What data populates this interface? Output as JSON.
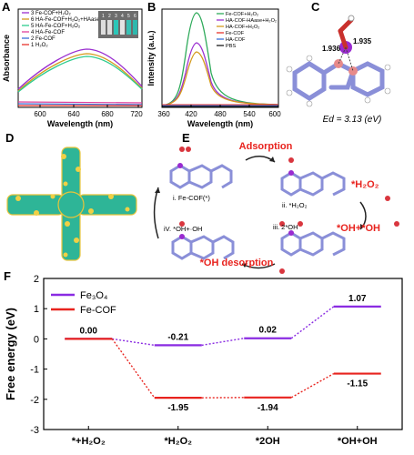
{
  "panels": {
    "A": {
      "label": "A",
      "ylabel": "Absorbance",
      "xlabel": "Wavelength (nm)",
      "xticks": [
        "600",
        "640",
        "680",
        "720"
      ],
      "legend": [
        "3 Fe-COF+H₂O₂",
        "6 HA-Fe-COF+H₂O₂+HAase",
        "5 HA-Fe-COF+H₂O₂",
        "4 HA-Fe-COF",
        "2 Fe-COF",
        "1 H₂O₂"
      ],
      "colors": [
        "#9b30d0",
        "#d49a1c",
        "#2ecc8f",
        "#e0409a",
        "#3a6fd8",
        "#e8342c"
      ],
      "inset_numbers": [
        "1",
        "2",
        "3",
        "4",
        "5",
        "6"
      ]
    },
    "B": {
      "label": "B",
      "ylabel": "Intensity (a.u.)",
      "xlabel": "Wavelength (nm)",
      "xticks": [
        "360",
        "420",
        "480",
        "540",
        "600"
      ],
      "legend": [
        "Fe-COF+H₂O₂",
        "HA-COF-HAase+H₂O₂",
        "HA-COF+H₂O₂",
        "Fe-COF",
        "HA-COF",
        "PBS"
      ],
      "colors": [
        "#2eaa5a",
        "#9b30d0",
        "#d49a1c",
        "#e8342c",
        "#3a6fd8",
        "#1a1a1a"
      ]
    },
    "C": {
      "label": "C",
      "bond1": "1.936",
      "bond2": "1.935",
      "energy": "Ed = 3.13 (eV)"
    },
    "D": {
      "label": "D"
    },
    "E": {
      "label": "E",
      "adsorption": "Adsorption",
      "h2o2": "*H₂O₂",
      "ohoh": "*OH+*OH",
      "desorption": "*OH desorption",
      "state1": "i. Fe-COF(*)",
      "state2": "ii. *H₂O₂",
      "state3": "iii. 2*OH",
      "state4": "iV. *OH+·OH"
    },
    "F": {
      "label": "F"
    }
  },
  "chart_data": {
    "type": "line",
    "ylabel": "Free energy (eV)",
    "ylim": [
      -3,
      2
    ],
    "yticks": [
      "-3",
      "-2",
      "-1",
      "0",
      "1",
      "2"
    ],
    "categories": [
      "*+H₂O₂",
      "*H₂O₂",
      "*2OH",
      "*OH+OH"
    ],
    "series": [
      {
        "name": "Fe₃O₄",
        "color": "#8a2be2",
        "values": [
          0.0,
          -0.21,
          0.02,
          1.07
        ],
        "labels": [
          "0.00",
          "-0.21",
          "0.02",
          "1.07"
        ]
      },
      {
        "name": "Fe-COF",
        "color": "#e8231e",
        "values": [
          0.0,
          -1.95,
          -1.94,
          -1.15
        ],
        "labels": [
          "",
          "-1.95",
          "-1.94",
          "-1.15"
        ]
      }
    ]
  }
}
